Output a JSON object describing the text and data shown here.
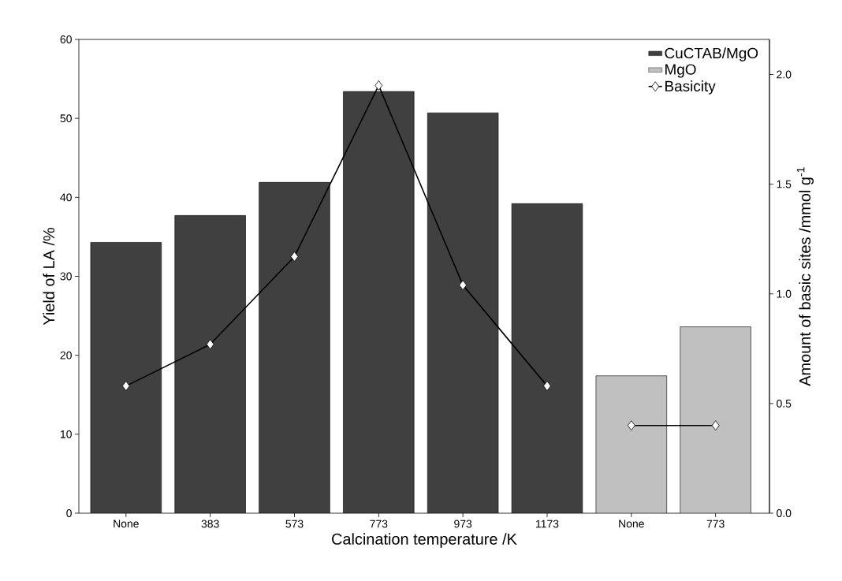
{
  "chart_data": {
    "type": "bar",
    "xlabel": "Calcination temperature /K",
    "ylabel": "Yield of LA /%",
    "y2label": "Amount of basic sites /mmol g$^{-1}$",
    "categories": [
      "None",
      "383",
      "573",
      "773",
      "973",
      "1173",
      "None",
      "773"
    ],
    "series": [
      {
        "name": "CuCTAB/MgO",
        "color": "#404040",
        "values": [
          34.3,
          37.7,
          41.9,
          53.4,
          50.7,
          39.2,
          null,
          null
        ]
      },
      {
        "name": "MgO",
        "color": "#c0c0c0",
        "values": [
          null,
          null,
          null,
          null,
          null,
          null,
          17.4,
          23.6
        ]
      },
      {
        "name": "Basicity",
        "type": "line",
        "axis": "y2",
        "color": "#000000",
        "values": [
          0.58,
          0.77,
          1.17,
          1.95,
          1.04,
          0.58,
          null,
          null
        ]
      },
      {
        "type": "line",
        "axis": "y2",
        "color": "#000000",
        "values": [
          null,
          null,
          null,
          null,
          null,
          null,
          0.4,
          0.4
        ]
      }
    ],
    "ylim": [
      0,
      60
    ],
    "yticks": [
      0,
      10,
      20,
      30,
      40,
      50,
      60
    ],
    "y2lim": [
      0,
      2.16
    ],
    "y2ticks": [
      {
        "value": 0,
        "label": "0.0"
      },
      {
        "value": 0.5,
        "label": "0.5"
      },
      {
        "value": 1,
        "label": "1.0"
      },
      {
        "value": 1.5,
        "label": "1.5"
      },
      {
        "value": 2,
        "label": "2.0"
      }
    ],
    "marker": "diamond",
    "legend": "top right",
    "grid": false
  }
}
